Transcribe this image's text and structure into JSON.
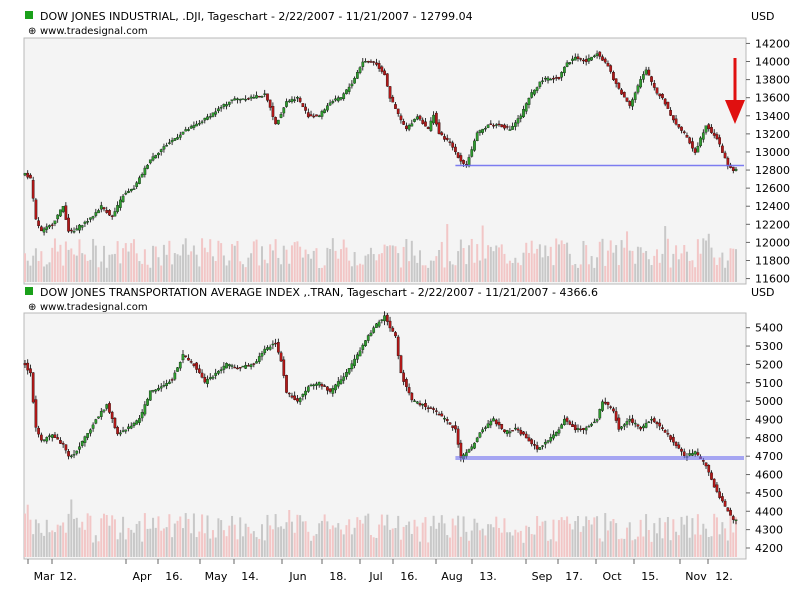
{
  "colors": {
    "panel_bg": "#f4f4f4",
    "up_candle": "#2e9a2e",
    "down_candle": "#b01818",
    "wick": "#000000",
    "volume_light": "#c8c8c8",
    "volume_pink": "#f2c6c6",
    "support_line": "#6f6ff0",
    "arrow": "#e01010",
    "grid_border": "#b8b8b8",
    "legend_marker": "#1aa01a"
  },
  "panels": [
    {
      "title": "DOW JONES INDUSTRIAL, .DJI, Tageschart - 2/22/2007 - 11/21/2007 - 12799.04",
      "source": "www.tradesignal.com",
      "currency": "USD",
      "y_ticks": [
        11600,
        11800,
        12000,
        12200,
        12400,
        12600,
        12800,
        13000,
        13200,
        13400,
        13600,
        13800,
        14000,
        14200
      ],
      "ylim": [
        11540,
        14260
      ]
    },
    {
      "title": "DOW JONES TRANSPORTATION AVERAGE INDEX ,.TRAN, Tageschart - 2/22/2007 - 11/21/2007 - 4366.6",
      "source": "www.tradesignal.com",
      "currency": "USD",
      "y_ticks": [
        4200,
        4300,
        4400,
        4500,
        4600,
        4700,
        4800,
        4900,
        5000,
        5100,
        5200,
        5300,
        5400
      ],
      "ylim": [
        4140,
        5480
      ]
    }
  ],
  "x_axis": {
    "labels": [
      "Mar",
      "12.",
      "Apr",
      "16.",
      "May",
      "14.",
      "Jun",
      "18.",
      "Jul",
      "16.",
      "Aug",
      "13.",
      "Sep",
      "17.",
      "Oct",
      "15.",
      "Nov",
      "12."
    ]
  },
  "chart_data": [
    {
      "type": "candlestick",
      "title": "DOW JONES INDUSTRIAL, .DJI, Tageschart - 2/22/2007 - 11/21/2007 - 12799.04",
      "ylabel": "USD",
      "ylim": [
        11540,
        14260
      ],
      "support_level": 12850,
      "anchors": [
        [
          0,
          12760
        ],
        [
          2,
          12700
        ],
        [
          4,
          12250
        ],
        [
          6,
          12120
        ],
        [
          10,
          12200
        ],
        [
          14,
          12400
        ],
        [
          16,
          12130
        ],
        [
          18,
          12120
        ],
        [
          20,
          12180
        ],
        [
          24,
          12260
        ],
        [
          28,
          12400
        ],
        [
          32,
          12280
        ],
        [
          36,
          12520
        ],
        [
          40,
          12600
        ],
        [
          46,
          12920
        ],
        [
          52,
          13080
        ],
        [
          58,
          13220
        ],
        [
          64,
          13320
        ],
        [
          70,
          13450
        ],
        [
          76,
          13580
        ],
        [
          82,
          13600
        ],
        [
          88,
          13630
        ],
        [
          90,
          13500
        ],
        [
          92,
          13300
        ],
        [
          96,
          13560
        ],
        [
          100,
          13600
        ],
        [
          104,
          13400
        ],
        [
          108,
          13400
        ],
        [
          112,
          13550
        ],
        [
          116,
          13600
        ],
        [
          120,
          13760
        ],
        [
          124,
          14000
        ],
        [
          128,
          14000
        ],
        [
          132,
          13860
        ],
        [
          134,
          13600
        ],
        [
          138,
          13350
        ],
        [
          140,
          13250
        ],
        [
          144,
          13400
        ],
        [
          148,
          13250
        ],
        [
          150,
          13420
        ],
        [
          152,
          13200
        ],
        [
          156,
          13100
        ],
        [
          160,
          12900
        ],
        [
          162,
          12860
        ],
        [
          166,
          13200
        ],
        [
          170,
          13300
        ],
        [
          174,
          13300
        ],
        [
          178,
          13250
        ],
        [
          182,
          13400
        ],
        [
          186,
          13650
        ],
        [
          190,
          13800
        ],
        [
          196,
          13820
        ],
        [
          198,
          13950
        ],
        [
          202,
          14050
        ],
        [
          206,
          14000
        ],
        [
          210,
          14100
        ],
        [
          214,
          13950
        ],
        [
          216,
          13800
        ],
        [
          220,
          13600
        ],
        [
          222,
          13520
        ],
        [
          226,
          13800
        ],
        [
          228,
          13900
        ],
        [
          232,
          13650
        ],
        [
          234,
          13600
        ],
        [
          238,
          13350
        ],
        [
          242,
          13200
        ],
        [
          246,
          13000
        ],
        [
          250,
          13300
        ],
        [
          254,
          13150
        ],
        [
          258,
          12850
        ],
        [
          260,
          12800
        ]
      ],
      "volume_note": "daily volume bars shown at panel bottom"
    },
    {
      "type": "candlestick",
      "title": "DOW JONES TRANSPORTATION AVERAGE INDEX ,.TRAN, Tageschart - 2/22/2007 - 11/21/2007 - 4366.6",
      "ylabel": "USD",
      "ylim": [
        4140,
        5480
      ],
      "support_level": 4690,
      "anchors": [
        [
          0,
          5200
        ],
        [
          2,
          5150
        ],
        [
          4,
          4850
        ],
        [
          6,
          4780
        ],
        [
          10,
          4820
        ],
        [
          14,
          4760
        ],
        [
          16,
          4700
        ],
        [
          18,
          4710
        ],
        [
          22,
          4800
        ],
        [
          26,
          4900
        ],
        [
          30,
          4980
        ],
        [
          34,
          4820
        ],
        [
          38,
          4860
        ],
        [
          42,
          4900
        ],
        [
          46,
          5050
        ],
        [
          50,
          5080
        ],
        [
          54,
          5120
        ],
        [
          58,
          5250
        ],
        [
          62,
          5200
        ],
        [
          66,
          5100
        ],
        [
          70,
          5150
        ],
        [
          74,
          5200
        ],
        [
          78,
          5180
        ],
        [
          84,
          5200
        ],
        [
          88,
          5280
        ],
        [
          92,
          5320
        ],
        [
          94,
          5220
        ],
        [
          96,
          5050
        ],
        [
          100,
          5000
        ],
        [
          104,
          5080
        ],
        [
          108,
          5100
        ],
        [
          112,
          5050
        ],
        [
          116,
          5120
        ],
        [
          120,
          5200
        ],
        [
          124,
          5300
        ],
        [
          128,
          5400
        ],
        [
          132,
          5460
        ],
        [
          136,
          5350
        ],
        [
          138,
          5150
        ],
        [
          142,
          5000
        ],
        [
          146,
          4980
        ],
        [
          150,
          4950
        ],
        [
          154,
          4900
        ],
        [
          158,
          4850
        ],
        [
          160,
          4690
        ],
        [
          164,
          4750
        ],
        [
          168,
          4850
        ],
        [
          172,
          4900
        ],
        [
          176,
          4830
        ],
        [
          180,
          4850
        ],
        [
          184,
          4800
        ],
        [
          188,
          4740
        ],
        [
          192,
          4780
        ],
        [
          196,
          4850
        ],
        [
          198,
          4900
        ],
        [
          202,
          4850
        ],
        [
          206,
          4850
        ],
        [
          210,
          4900
        ],
        [
          212,
          5000
        ],
        [
          216,
          4950
        ],
        [
          218,
          4850
        ],
        [
          222,
          4900
        ],
        [
          226,
          4850
        ],
        [
          230,
          4900
        ],
        [
          232,
          4880
        ],
        [
          234,
          4850
        ],
        [
          238,
          4780
        ],
        [
          242,
          4700
        ],
        [
          246,
          4720
        ],
        [
          250,
          4650
        ],
        [
          254,
          4500
        ],
        [
          258,
          4400
        ],
        [
          260,
          4360
        ]
      ],
      "volume_note": "daily volume bars shown at panel bottom"
    }
  ]
}
